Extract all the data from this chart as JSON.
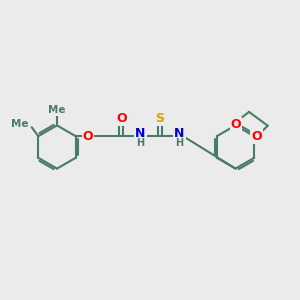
{
  "bg_color": "#ebebeb",
  "bond_color": "#4a7a6a",
  "bond_width": 1.5,
  "atom_colors": {
    "O": "#ff0000",
    "N": "#0000cc",
    "S": "#ccaa00",
    "C": "#4a7a6a",
    "H": "#4a7a6a"
  },
  "font_size_atoms": 9,
  "font_size_small": 7.5
}
